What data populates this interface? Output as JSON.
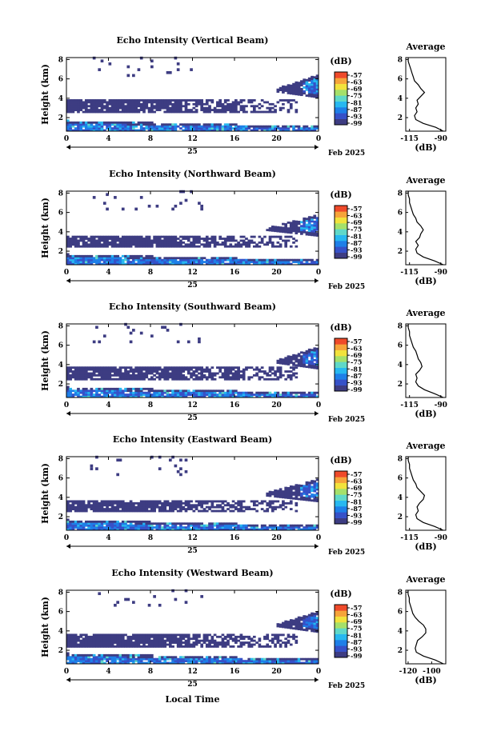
{
  "figure": {
    "xaxis_label": "Local Time",
    "date_day": "25",
    "date_month_year": "Feb 2025",
    "ylabel": "Height (km)",
    "x_ticks": [
      "0",
      "4",
      "8",
      "12",
      "16",
      "20",
      "0"
    ],
    "y_ticks": [
      "2",
      "4",
      "6",
      "8"
    ],
    "colorbar_unit": "(dB)",
    "colorbar_ticks": [
      "-57",
      "-63",
      "-69",
      "-75",
      "-81",
      "-87",
      "-93",
      "-99"
    ],
    "colors": [
      "#3d3c82",
      "#3651c8",
      "#1e7fe8",
      "#27b8f0",
      "#5fd8c8",
      "#a5e06a",
      "#f2e23c",
      "#f6a43a",
      "#ef4a2a"
    ],
    "avg_title": "Average",
    "avg_unit": "(dB)"
  },
  "chart_data": [
    {
      "type": "heatmap",
      "title": "Echo Intensity (Vertical Beam)",
      "ylabel": "Height (km)",
      "xlim": [
        0,
        24
      ],
      "ylim": [
        0.6,
        8.2
      ],
      "note": "echo layers: dense surface layer 0.6-1.5 km, layer ~2.5-3.8 km, sparse clutter above 6 km, convective patch 4-6.4 km after 20 h",
      "colorbar": {
        "label": "(dB)",
        "ticks": [
          -57,
          -63,
          -69,
          -75,
          -81,
          -87,
          -93,
          -99
        ]
      },
      "average_profile": {
        "xlabel": "(dB)",
        "x_ticks": [
          "-115",
          "-90"
        ],
        "xlim": [
          -118,
          -86
        ],
        "height_km": [
          0.6,
          1.0,
          1.4,
          1.8,
          2.2,
          2.6,
          3.0,
          3.4,
          3.8,
          4.2,
          4.6,
          5.0,
          5.4,
          5.8,
          6.2,
          6.6,
          7.0,
          7.4,
          7.8,
          8.2
        ],
        "values_db": [
          -88,
          -94,
          -104,
          -110,
          -111,
          -109,
          -110,
          -108,
          -109,
          -106,
          -103,
          -106,
          -108,
          -111,
          -112,
          -113,
          -114,
          -115,
          -116,
          -116
        ]
      }
    },
    {
      "type": "heatmap",
      "title": "Echo Intensity (Northward Beam)",
      "ylabel": "Height (km)",
      "xlim": [
        0,
        24
      ],
      "ylim": [
        0.6,
        8.2
      ],
      "note": "echo layers: surface layer 0.6-1.5 km, layer ~2.4-3.6 km, sparse clutter above 6 km, convective patch 3.5-5.7 km after 19 h",
      "colorbar": {
        "label": "(dB)",
        "ticks": [
          -57,
          -63,
          -69,
          -75,
          -81,
          -87,
          -93,
          -99
        ]
      },
      "average_profile": {
        "xlabel": "(dB)",
        "x_ticks": [
          "-115",
          "-90"
        ],
        "xlim": [
          -118,
          -86
        ],
        "height_km": [
          0.6,
          1.0,
          1.4,
          1.8,
          2.2,
          2.6,
          3.0,
          3.4,
          3.8,
          4.2,
          4.6,
          5.0,
          5.4,
          5.8,
          6.2,
          6.6,
          7.0,
          7.4,
          7.8,
          8.2
        ],
        "values_db": [
          -88,
          -95,
          -104,
          -109,
          -110,
          -108,
          -110,
          -107,
          -106,
          -104,
          -106,
          -109,
          -110,
          -112,
          -113,
          -114,
          -115,
          -115,
          -116,
          -116
        ]
      }
    },
    {
      "type": "heatmap",
      "title": "Echo Intensity (Southward Beam)",
      "ylabel": "Height (km)",
      "xlim": [
        0,
        24
      ],
      "ylim": [
        0.6,
        8.2
      ],
      "note": "echo layers: surface layer, layer ~2.4-3.8 km, clutter above 6 km, convective patch 3.5-5.8 km after 20 h",
      "colorbar": {
        "label": "(dB)",
        "ticks": [
          -57,
          -63,
          -69,
          -75,
          -81,
          -87,
          -93,
          -99
        ]
      },
      "average_profile": {
        "xlabel": "(dB)",
        "x_ticks": [
          "-115",
          "-90"
        ],
        "xlim": [
          -118,
          -86
        ],
        "height_km": [
          0.6,
          1.0,
          1.4,
          1.8,
          2.2,
          2.6,
          3.0,
          3.4,
          3.8,
          4.2,
          4.6,
          5.0,
          5.4,
          5.8,
          6.2,
          6.6,
          7.0,
          7.4,
          7.8,
          8.2
        ],
        "values_db": [
          -88,
          -95,
          -103,
          -108,
          -110,
          -109,
          -110,
          -107,
          -105,
          -106,
          -108,
          -109,
          -110,
          -112,
          -113,
          -114,
          -115,
          -115,
          -116,
          -116
        ]
      }
    },
    {
      "type": "heatmap",
      "title": "Echo Intensity (Eastward Beam)",
      "ylabel": "Height (km)",
      "xlim": [
        0,
        24
      ],
      "ylim": [
        0.6,
        8.2
      ],
      "note": "echo layers: surface layer, layer ~2.5-3.6 km, clutter above 6 km, convective patch 3.5-5.8 km after 19 h",
      "colorbar": {
        "label": "(dB)",
        "ticks": [
          -57,
          -63,
          -69,
          -75,
          -81,
          -87,
          -93,
          -99
        ]
      },
      "average_profile": {
        "xlabel": "(dB)",
        "x_ticks": [
          "-115",
          "-90"
        ],
        "xlim": [
          -118,
          -86
        ],
        "height_km": [
          0.6,
          1.0,
          1.4,
          1.8,
          2.2,
          2.6,
          3.0,
          3.4,
          3.8,
          4.2,
          4.6,
          5.0,
          5.4,
          5.8,
          6.2,
          6.6,
          7.0,
          7.4,
          7.8,
          8.2
        ],
        "values_db": [
          -88,
          -95,
          -104,
          -109,
          -110,
          -108,
          -109,
          -107,
          -104,
          -103,
          -106,
          -109,
          -110,
          -112,
          -113,
          -114,
          -115,
          -115,
          -116,
          -116
        ]
      }
    },
    {
      "type": "heatmap",
      "title": "Echo Intensity (Westward Beam)",
      "ylabel": "Height (km)",
      "xlim": [
        0,
        24
      ],
      "ylim": [
        0.6,
        8.2
      ],
      "note": "echo layers: surface layer, layer ~2.3-3.6 km, clutter above 6 km, convective patch 3.8-6 km after 20 h",
      "colorbar": {
        "label": "(dB)",
        "ticks": [
          -57,
          -63,
          -69,
          -75,
          -81,
          -87,
          -93,
          -99
        ]
      },
      "average_profile": {
        "xlabel": "(dB)",
        "x_ticks": [
          "-120",
          "-100"
        ],
        "xlim": [
          -122,
          -88
        ],
        "height_km": [
          0.6,
          1.0,
          1.4,
          1.8,
          2.2,
          2.6,
          3.0,
          3.4,
          3.8,
          4.2,
          4.6,
          5.0,
          5.4,
          5.8,
          6.2,
          6.6,
          7.0,
          7.4,
          7.8,
          8.2
        ],
        "values_db": [
          -90,
          -97,
          -107,
          -113,
          -114,
          -113,
          -112,
          -108,
          -105,
          -105,
          -107,
          -111,
          -114,
          -116,
          -117,
          -118,
          -119,
          -119,
          -120,
          -120
        ]
      }
    }
  ]
}
